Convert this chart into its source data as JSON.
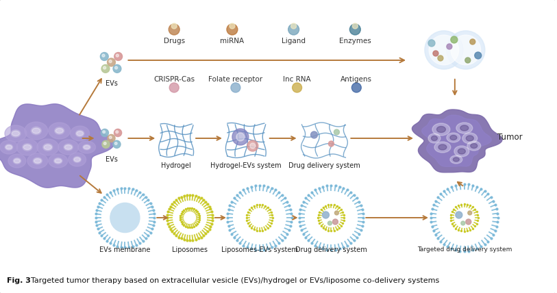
{
  "fig_caption_bold": "Fig. 3",
  "fig_caption_rest": "  Targeted tumor therapy based on extracellular vesicle (EVs)/hydrogel or EVs/liposome co-delivery systems",
  "background_color": "#ffffff",
  "border_color": "#cccccc",
  "arrow_color": "#b5793a",
  "top_labels_row1": [
    "Drugs",
    "miRNA",
    "Ligand",
    "Enzymes"
  ],
  "top_labels_row2": [
    "CRISPR-Cas",
    "Folate receptor",
    "lnc RNA",
    "Antigens"
  ],
  "mid_row_labels": [
    "EVs",
    "Hydrogel",
    "Hydrogel-EVs system",
    "Drug delivery system"
  ],
  "bot_row_labels": [
    "EVs membrane",
    "Liposomes",
    "Liposomes-EVs system",
    "Drug delivery system"
  ],
  "tumor_label": "Tumor",
  "ev_top_label": "EVs",
  "ev_mid_label": "EVs",
  "tumor_purple": "#7c6aaa",
  "tumor_dark": "#5a4888",
  "cell_color": "#9080c0",
  "hydrogel_line_color": "#5590c0",
  "hydrogel_bg": "#eaf4ff",
  "lipo_outer": "#7ab8d8",
  "lipo_inner": "#c8c820",
  "ev_colors": [
    "#8ab8cc",
    "#c8a888",
    "#d89898",
    "#b8c898",
    "#b8a8cc"
  ],
  "caption_fontsize": 8.0,
  "label_fontsize": 7.0,
  "icon_label_fontsize": 7.5
}
